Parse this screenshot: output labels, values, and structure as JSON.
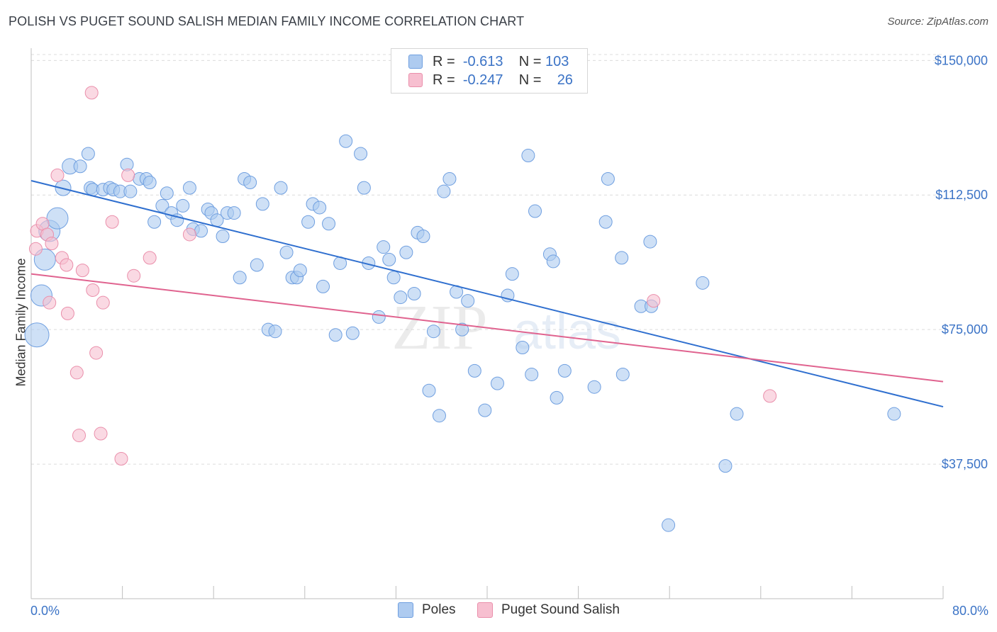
{
  "header": {
    "title": "POLISH VS PUGET SOUND SALISH MEDIAN FAMILY INCOME CORRELATION CHART",
    "source": "Source: ZipAtlas.com"
  },
  "legend": {
    "rows": [
      {
        "r_label": "R =",
        "r_value": "-0.613",
        "n_label": "N =",
        "n_value": "103"
      },
      {
        "r_label": "R =",
        "r_value": "-0.247",
        "n_label": "N =",
        "n_value": "26"
      }
    ]
  },
  "bottom_legend": {
    "poles": "Poles",
    "salish": "Puget Sound Salish"
  },
  "colors": {
    "poles_fill": "#aecbf0",
    "poles_stroke": "#6f9fe0",
    "poles_line": "#2f6fcf",
    "salish_fill": "#f7bfd0",
    "salish_stroke": "#ea8fab",
    "salish_line": "#e0638f",
    "tick_text": "#3b73c6",
    "grid": "#dcdcdc"
  },
  "watermark": {
    "zip": "ZIP",
    "atlas": "atlas"
  },
  "chart_data": {
    "type": "scatter",
    "title": "POLISH VS PUGET SOUND SALISH MEDIAN FAMILY INCOME CORRELATION CHART",
    "xlabel": "",
    "ylabel": "Median Family Income",
    "xlim": [
      0,
      80
    ],
    "ylim": [
      0,
      155000
    ],
    "x_tick_labels": [
      "0.0%",
      "80.0%"
    ],
    "y_ticks": [
      37500,
      75000,
      112500,
      150000
    ],
    "y_tick_labels": [
      "$37,500",
      "$75,000",
      "$112,500",
      "$150,000"
    ],
    "grid": "horizontal dashed",
    "legend_position": "top-center",
    "series": [
      {
        "name": "Poles",
        "r": -0.613,
        "n": 103,
        "trend": {
          "x": [
            0,
            80
          ],
          "y": [
            116500,
            53500
          ]
        },
        "points": [
          [
            0.5,
            73500,
            5
          ],
          [
            0.9,
            84500,
            4
          ],
          [
            1.2,
            94500,
            4
          ],
          [
            1.6,
            102500,
            4
          ],
          [
            2.3,
            106000,
            4
          ],
          [
            2.8,
            114500,
            3
          ],
          [
            3.4,
            120500,
            3
          ],
          [
            4.3,
            120500,
            2
          ],
          [
            5.0,
            124000,
            2
          ],
          [
            5.2,
            114500,
            2
          ],
          [
            5.4,
            114000,
            2
          ],
          [
            6.3,
            114000,
            2
          ],
          [
            6.9,
            114500,
            2
          ],
          [
            7.2,
            114000,
            2
          ],
          [
            7.8,
            113500,
            2
          ],
          [
            8.4,
            121000,
            2
          ],
          [
            8.7,
            113500,
            2
          ],
          [
            9.5,
            117000,
            2
          ],
          [
            10.1,
            117000,
            2
          ],
          [
            10.4,
            116000,
            2
          ],
          [
            10.8,
            105000,
            2
          ],
          [
            11.5,
            109500,
            2
          ],
          [
            11.9,
            113000,
            2
          ],
          [
            12.3,
            107500,
            2
          ],
          [
            12.8,
            105500,
            2
          ],
          [
            13.3,
            109500,
            2
          ],
          [
            13.9,
            114500,
            2
          ],
          [
            14.2,
            103000,
            2
          ],
          [
            14.9,
            102500,
            2
          ],
          [
            15.5,
            108500,
            2
          ],
          [
            15.8,
            107500,
            2
          ],
          [
            16.3,
            105500,
            2
          ],
          [
            16.8,
            101000,
            2
          ],
          [
            17.2,
            107500,
            2
          ],
          [
            17.8,
            107500,
            2
          ],
          [
            18.3,
            89500,
            2
          ],
          [
            18.7,
            117000,
            2
          ],
          [
            19.2,
            116000,
            2
          ],
          [
            19.8,
            93000,
            2
          ],
          [
            20.3,
            110000,
            2
          ],
          [
            20.8,
            75000,
            2
          ],
          [
            21.4,
            74500,
            2
          ],
          [
            21.9,
            114500,
            2
          ],
          [
            22.4,
            96500,
            2
          ],
          [
            22.9,
            89500,
            2
          ],
          [
            23.3,
            89500,
            2
          ],
          [
            23.6,
            91500,
            2
          ],
          [
            24.3,
            105000,
            2
          ],
          [
            24.7,
            110000,
            2
          ],
          [
            25.3,
            109000,
            2
          ],
          [
            25.6,
            87000,
            2
          ],
          [
            26.1,
            104500,
            2
          ],
          [
            26.7,
            73500,
            2
          ],
          [
            27.1,
            93500,
            2
          ],
          [
            27.6,
            127500,
            2
          ],
          [
            28.2,
            74000,
            2
          ],
          [
            28.9,
            124000,
            2
          ],
          [
            29.2,
            114500,
            2
          ],
          [
            29.6,
            93500,
            2
          ],
          [
            30.5,
            78500,
            2
          ],
          [
            30.9,
            98000,
            2
          ],
          [
            31.4,
            94500,
            2
          ],
          [
            31.8,
            89500,
            2
          ],
          [
            32.4,
            84000,
            2
          ],
          [
            32.9,
            96500,
            2
          ],
          [
            33.6,
            85000,
            2
          ],
          [
            33.9,
            102000,
            2
          ],
          [
            34.4,
            101000,
            2
          ],
          [
            34.9,
            58000,
            2
          ],
          [
            35.3,
            74500,
            2
          ],
          [
            35.8,
            51000,
            2
          ],
          [
            36.2,
            113500,
            2
          ],
          [
            36.7,
            117000,
            2
          ],
          [
            37.3,
            85500,
            2
          ],
          [
            37.8,
            75000,
            2
          ],
          [
            38.3,
            83000,
            2
          ],
          [
            38.9,
            63500,
            2
          ],
          [
            39.8,
            52500,
            2
          ],
          [
            40.9,
            60000,
            2
          ],
          [
            41.8,
            84500,
            2
          ],
          [
            42.2,
            90500,
            2
          ],
          [
            43.1,
            70000,
            2
          ],
          [
            43.6,
            123500,
            2
          ],
          [
            43.9,
            62500,
            2
          ],
          [
            44.2,
            108000,
            2
          ],
          [
            45.5,
            96000,
            2
          ],
          [
            45.8,
            94000,
            2
          ],
          [
            46.1,
            56000,
            2
          ],
          [
            46.8,
            63500,
            2
          ],
          [
            49.4,
            59000,
            2
          ],
          [
            50.4,
            105000,
            2
          ],
          [
            50.6,
            117000,
            2
          ],
          [
            51.8,
            95000,
            2
          ],
          [
            51.9,
            62500,
            2
          ],
          [
            53.5,
            81500,
            2
          ],
          [
            54.3,
            99500,
            2
          ],
          [
            54.4,
            81500,
            2
          ],
          [
            55.9,
            20500,
            2
          ],
          [
            58.9,
            88000,
            2
          ],
          [
            60.9,
            37000,
            2
          ],
          [
            61.9,
            51500,
            2
          ],
          [
            75.7,
            51500,
            2
          ]
        ]
      },
      {
        "name": "Puget Sound Salish",
        "r": -0.247,
        "n": 26,
        "trend": {
          "x": [
            0,
            80
          ],
          "y": [
            90500,
            60500
          ]
        },
        "points": [
          [
            0.4,
            97500,
            2
          ],
          [
            0.5,
            102500,
            2
          ],
          [
            1.0,
            104500,
            2
          ],
          [
            1.4,
            101500,
            2
          ],
          [
            1.6,
            82500,
            2
          ],
          [
            1.8,
            99000,
            2
          ],
          [
            2.3,
            118000,
            2
          ],
          [
            2.7,
            95000,
            2
          ],
          [
            3.1,
            93000,
            2
          ],
          [
            3.2,
            79500,
            2
          ],
          [
            4.0,
            63000,
            2
          ],
          [
            4.2,
            45500,
            2
          ],
          [
            4.5,
            91500,
            2
          ],
          [
            5.3,
            141000,
            2
          ],
          [
            5.4,
            86000,
            2
          ],
          [
            5.7,
            68500,
            2
          ],
          [
            6.1,
            46000,
            2
          ],
          [
            6.3,
            82500,
            2
          ],
          [
            7.1,
            105000,
            2
          ],
          [
            7.9,
            39000,
            2
          ],
          [
            8.5,
            118000,
            2
          ],
          [
            9.0,
            90000,
            2
          ],
          [
            10.4,
            95000,
            2
          ],
          [
            13.9,
            101500,
            2
          ],
          [
            54.6,
            83000,
            2
          ],
          [
            64.8,
            56500,
            2
          ]
        ]
      }
    ]
  }
}
